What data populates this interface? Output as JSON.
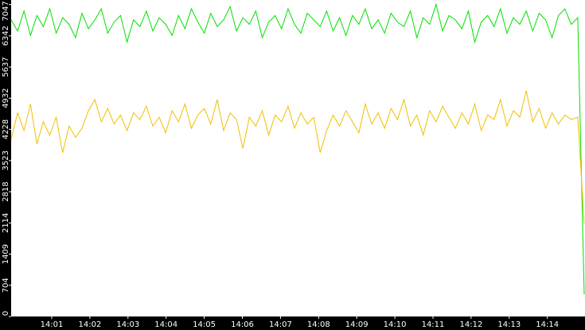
{
  "chart_data": {
    "type": "line",
    "ylim": [
      0,
      7150
    ],
    "yticks": [
      0,
      704,
      1409,
      2114,
      2818,
      3523,
      4228,
      4932,
      5637,
      6342,
      7047
    ],
    "xticks": [
      "14:01",
      "14:02",
      "14:03",
      "14:04",
      "14:05",
      "14:06",
      "14:07",
      "14:08",
      "14:09",
      "14:10",
      "14:11",
      "14:12",
      "14:13",
      "14:14"
    ],
    "series": [
      {
        "color": "#00e000",
        "values": [
          6700,
          6450,
          6900,
          6350,
          6800,
          6550,
          6950,
          6400,
          6750,
          6600,
          6300,
          6850,
          6500,
          6700,
          6950,
          6400,
          6650,
          6800,
          6200,
          6700,
          6550,
          6900,
          6450,
          6750,
          6600,
          6350,
          6800,
          6500,
          6950,
          6650,
          6400,
          6850,
          6550,
          6700,
          7000,
          6450,
          6750,
          6600,
          6900,
          6300,
          6650,
          6800,
          6500,
          6950,
          6600,
          6400,
          6850,
          6700,
          6550,
          6900,
          6450,
          6750,
          6350,
          6800,
          6600,
          6950,
          6500,
          6700,
          6400,
          6850,
          6650,
          6550,
          6900,
          6300,
          6750,
          6600,
          7050,
          6450,
          6800,
          6700,
          6500,
          6900,
          6200,
          6650,
          6800,
          6550,
          6950,
          6400,
          6750,
          6600,
          6900,
          6450,
          6850,
          6700,
          6300,
          6800,
          6950,
          6600,
          6750,
          500
        ]
      },
      {
        "color": "#f0c000",
        "values": [
          4000,
          4600,
          4200,
          4800,
          3900,
          4400,
          4100,
          4500,
          3700,
          4300,
          4050,
          4250,
          4650,
          4900,
          4400,
          4700,
          4350,
          4550,
          4200,
          4600,
          4450,
          4750,
          4300,
          4500,
          4150,
          4650,
          4400,
          4800,
          4250,
          4550,
          4700,
          4350,
          4900,
          4200,
          4600,
          4450,
          3800,
          4500,
          4300,
          4650,
          4100,
          4550,
          4400,
          4750,
          4250,
          4600,
          4350,
          4500,
          3700,
          4200,
          4550,
          4300,
          4650,
          4400,
          4150,
          4800,
          4350,
          4600,
          4250,
          4700,
          4450,
          4900,
          4300,
          4550,
          4100,
          4650,
          4400,
          4750,
          4500,
          4250,
          4600,
          4350,
          4800,
          4200,
          4550,
          4450,
          4900,
          4300,
          4650,
          4500,
          5100,
          4400,
          4700,
          4250,
          4600,
          4350,
          4550,
          4450,
          4500,
          2100
        ]
      }
    ]
  }
}
